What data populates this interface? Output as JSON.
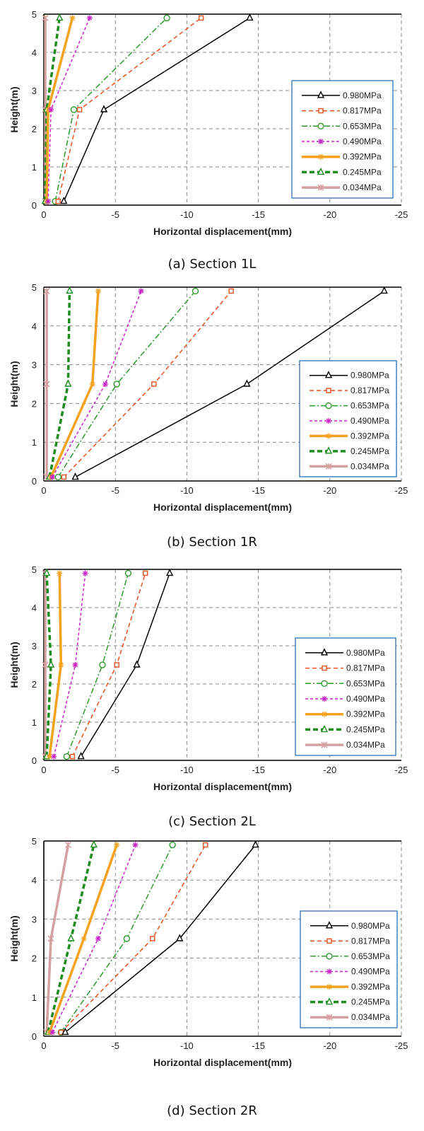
{
  "chart_data": [
    {
      "type": "line",
      "caption": "(a) Section 1L",
      "xlabel": "Horizontal displacement(mm)",
      "ylabel": "Height(m)",
      "xlim": [
        0,
        -25
      ],
      "ylim": [
        0,
        5
      ],
      "xticks": [
        "0",
        "-5",
        "-10",
        "-15",
        "-20",
        "-25"
      ],
      "yticks": [
        "0",
        "1",
        "2",
        "3",
        "4",
        "5"
      ],
      "grid": true,
      "legend_position": "right",
      "series": [
        {
          "name": "0.980MPa",
          "x": [
            -1.4,
            -4.2,
            -14.4
          ],
          "y": [
            0.1,
            2.5,
            4.9
          ]
        },
        {
          "name": "0.817MPa",
          "x": [
            -1.0,
            -2.5,
            -11.0
          ],
          "y": [
            0.1,
            2.5,
            4.9
          ]
        },
        {
          "name": "0.653MPa",
          "x": [
            -0.8,
            -2.1,
            -8.6
          ],
          "y": [
            0.1,
            2.5,
            4.9
          ]
        },
        {
          "name": "0.490MPa",
          "x": [
            -0.3,
            -0.5,
            -3.2
          ],
          "y": [
            0.1,
            2.5,
            4.9
          ]
        },
        {
          "name": "0.392MPa",
          "x": [
            -0.2,
            -0.3,
            -2.0
          ],
          "y": [
            0.1,
            2.5,
            4.9
          ]
        },
        {
          "name": "0.245MPa",
          "x": [
            -0.1,
            -0.2,
            -1.1
          ],
          "y": [
            0.1,
            2.5,
            4.9
          ]
        },
        {
          "name": "0.034MPa",
          "x": [
            -0.1,
            -0.1,
            -0.1
          ],
          "y": [
            0.1,
            2.5,
            4.9
          ]
        }
      ]
    },
    {
      "type": "line",
      "caption": "(b) Section 1R",
      "xlabel": "Horizontal displacement(mm)",
      "ylabel": "Height(m)",
      "xlim": [
        0,
        -25
      ],
      "ylim": [
        0,
        5
      ],
      "xticks": [
        "0",
        "-5",
        "-10",
        "-15",
        "-20",
        "-25"
      ],
      "yticks": [
        "0",
        "1",
        "2",
        "3",
        "4",
        "5"
      ],
      "grid": true,
      "legend_position": "right",
      "series": [
        {
          "name": "0.980MPa",
          "x": [
            -2.2,
            -14.2,
            -23.8
          ],
          "y": [
            0.1,
            2.5,
            4.9
          ]
        },
        {
          "name": "0.817MPa",
          "x": [
            -1.4,
            -7.7,
            -13.1
          ],
          "y": [
            0.1,
            2.5,
            4.9
          ]
        },
        {
          "name": "0.653MPa",
          "x": [
            -1.0,
            -5.1,
            -10.6
          ],
          "y": [
            0.1,
            2.5,
            4.9
          ]
        },
        {
          "name": "0.490MPa",
          "x": [
            -0.6,
            -4.3,
            -6.8
          ],
          "y": [
            0.1,
            2.5,
            4.9
          ]
        },
        {
          "name": "0.392MPa",
          "x": [
            -0.5,
            -3.4,
            -3.8
          ],
          "y": [
            0.1,
            2.5,
            4.9
          ]
        },
        {
          "name": "0.245MPa",
          "x": [
            -0.4,
            -1.7,
            -1.8
          ],
          "y": [
            0.1,
            2.5,
            4.9
          ]
        },
        {
          "name": "0.034MPa",
          "x": [
            -0.2,
            -0.2,
            -0.2
          ],
          "y": [
            0.1,
            2.5,
            4.9
          ]
        }
      ]
    },
    {
      "type": "line",
      "caption": "(c) Section 2L",
      "xlabel": "Horizontal displacement(mm)",
      "ylabel": "Height(m)",
      "xlim": [
        0,
        -25
      ],
      "ylim": [
        0,
        5
      ],
      "xticks": [
        "0",
        "-5",
        "-10",
        "-15",
        "-20",
        "-25"
      ],
      "yticks": [
        "0",
        "1",
        "2",
        "3",
        "4",
        "5"
      ],
      "grid": true,
      "legend_position": "right",
      "series": [
        {
          "name": "0.980MPa",
          "x": [
            -2.6,
            -6.5,
            -8.8
          ],
          "y": [
            0.1,
            2.5,
            4.9
          ]
        },
        {
          "name": "0.817MPa",
          "x": [
            -2.0,
            -5.1,
            -7.1
          ],
          "y": [
            0.1,
            2.5,
            4.9
          ]
        },
        {
          "name": "0.653MPa",
          "x": [
            -1.6,
            -4.1,
            -5.9
          ],
          "y": [
            0.1,
            2.5,
            4.9
          ]
        },
        {
          "name": "0.490MPa",
          "x": [
            -0.7,
            -2.2,
            -2.9
          ],
          "y": [
            0.1,
            2.5,
            4.9
          ]
        },
        {
          "name": "0.392MPa",
          "x": [
            -0.4,
            -1.2,
            -1.1
          ],
          "y": [
            0.1,
            2.5,
            4.9
          ]
        },
        {
          "name": "0.245MPa",
          "x": [
            -0.2,
            -0.5,
            -0.2
          ],
          "y": [
            0.1,
            2.5,
            4.9
          ]
        },
        {
          "name": "0.034MPa",
          "x": [
            -0.1,
            -0.1,
            -0.1
          ],
          "y": [
            0.1,
            2.5,
            4.9
          ]
        }
      ]
    },
    {
      "type": "line",
      "caption": "(d) Section 2R",
      "xlabel": "Horizontal displacement(mm)",
      "ylabel": "Height(m)",
      "xlim": [
        0,
        -25
      ],
      "ylim": [
        0,
        5
      ],
      "xticks": [
        "0",
        "-5",
        "-10",
        "-15",
        "-20",
        "-25"
      ],
      "yticks": [
        "0",
        "1",
        "2",
        "3",
        "4",
        "5"
      ],
      "grid": true,
      "legend_position": "right",
      "series": [
        {
          "name": "0.980MPa",
          "x": [
            -1.5,
            -9.5,
            -14.8
          ],
          "y": [
            0.1,
            2.5,
            4.9
          ]
        },
        {
          "name": "0.817MPa",
          "x": [
            -1.2,
            -7.6,
            -11.3
          ],
          "y": [
            0.1,
            2.5,
            4.9
          ]
        },
        {
          "name": "0.653MPa",
          "x": [
            -1.2,
            -5.8,
            -9.0
          ],
          "y": [
            0.1,
            2.5,
            4.9
          ]
        },
        {
          "name": "0.490MPa",
          "x": [
            -0.6,
            -3.8,
            -6.4
          ],
          "y": [
            0.1,
            2.5,
            4.9
          ]
        },
        {
          "name": "0.392MPa",
          "x": [
            -0.4,
            -2.8,
            -5.1
          ],
          "y": [
            0.1,
            2.5,
            4.9
          ]
        },
        {
          "name": "0.245MPa",
          "x": [
            -0.3,
            -1.9,
            -3.5
          ],
          "y": [
            0.1,
            2.5,
            4.9
          ]
        },
        {
          "name": "0.034MPa",
          "x": [
            -0.2,
            -0.5,
            -1.7
          ],
          "y": [
            0.1,
            2.5,
            4.9
          ]
        }
      ]
    }
  ],
  "series_styles": [
    {
      "color": "#000000",
      "dash": "",
      "width": 1.5,
      "marker": "triangle"
    },
    {
      "color": "#e8501e",
      "dash": "6,4",
      "width": 1.5,
      "marker": "square"
    },
    {
      "color": "#2e9a2e",
      "dash": "8,3,2,3",
      "width": 1.5,
      "marker": "circle"
    },
    {
      "color": "#cc22cc",
      "dash": "4,3",
      "width": 1.5,
      "marker": "star"
    },
    {
      "color": "#f5a21e",
      "dash": "",
      "width": 3.5,
      "marker": "star"
    },
    {
      "color": "#1e8c1e",
      "dash": "7,4",
      "width": 3.5,
      "marker": "triangle"
    },
    {
      "color": "#d4a0a0",
      "dash": "",
      "width": 3.5,
      "marker": "x"
    }
  ]
}
